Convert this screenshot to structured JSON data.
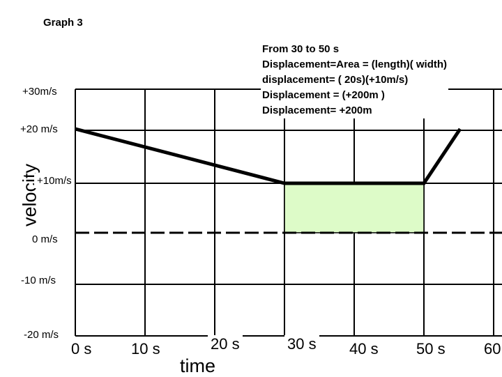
{
  "title": "Graph 3",
  "note": {
    "lines": [
      "From 30 to 50 s",
      "Displacement=Area = (length)( width)",
      "displacement= ( 20s)(+10m/s)",
      "Displacement =  (+200m )",
      "Displacement= +200m"
    ]
  },
  "axes": {
    "y_label": "velocity",
    "x_label": "time",
    "y_ticks": [
      "+30m/s",
      "+20 m/s",
      "+10m/s",
      "0 m/s",
      "-10 m/s",
      "-20 m/s"
    ],
    "x_ticks": [
      "0 s",
      "10 s",
      "20 s",
      "30 s",
      "40 s",
      "50 s",
      "60"
    ]
  },
  "colors": {
    "area_fill": "#ddfbc8",
    "line": "#000000"
  }
}
